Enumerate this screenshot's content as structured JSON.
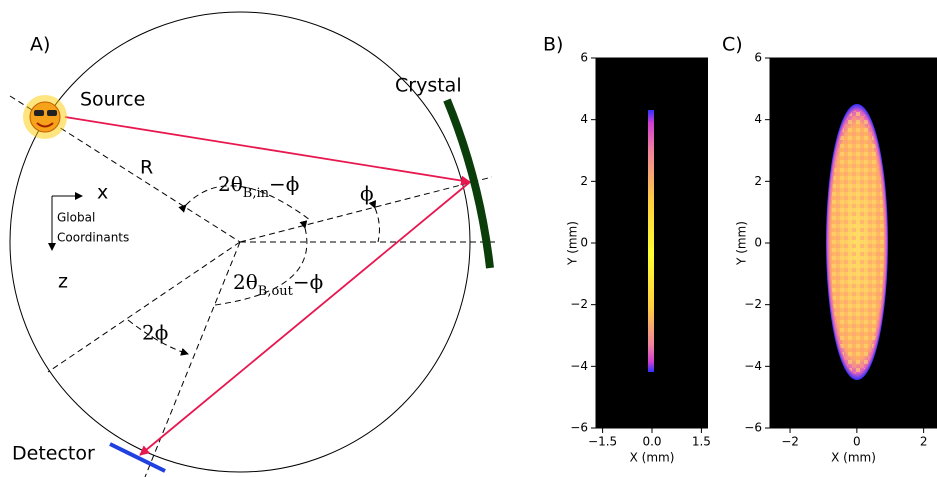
{
  "diagram": {
    "panel_label": "A)",
    "source": "Source",
    "crystal": "Crystal",
    "detector": "Detector",
    "radius": "R",
    "axis_x": "x",
    "axis_z": "z",
    "coordinates_note": [
      "Global",
      "Coordinants"
    ],
    "angle_in": {
      "main": "2θ",
      "sub": "B,in",
      "tail": "−ϕ"
    },
    "angle_phi": "ϕ",
    "angle_out": {
      "main": "2θ",
      "sub": "B,out",
      "tail": "−ϕ"
    },
    "angle_2phi": "2ϕ"
  },
  "chart_data": [
    {
      "type": "heatmap",
      "panel_label": "B)",
      "xlabel": "X (mm)",
      "ylabel": "Y (mm)",
      "xlim": [
        -1.7,
        1.7
      ],
      "ylim": [
        -6,
        6
      ],
      "xticks": [
        {
          "value": -1.5,
          "label": "−1.5"
        },
        {
          "value": 0,
          "label": "0.0"
        },
        {
          "value": 1.5,
          "label": "1.5"
        }
      ],
      "yticks": [
        {
          "value": -6,
          "label": "−6"
        },
        {
          "value": -4,
          "label": "−4"
        },
        {
          "value": -2,
          "label": "−2"
        },
        0,
        2,
        4,
        6
      ]
    },
    {
      "type": "heatmap",
      "panel_label": "C)",
      "xlabel": "X (mm)",
      "ylabel": "Y (mm)",
      "xlim": [
        -2.6,
        2.4
      ],
      "ylim": [
        -6,
        6
      ],
      "xticks": [
        {
          "value": -2,
          "label": "−2"
        },
        0,
        2
      ],
      "yticks": [
        {
          "value": -6,
          "label": "−6"
        },
        {
          "value": -4,
          "label": "−4"
        },
        {
          "value": -2,
          "label": "−2"
        },
        0,
        2,
        4,
        6
      ]
    }
  ]
}
